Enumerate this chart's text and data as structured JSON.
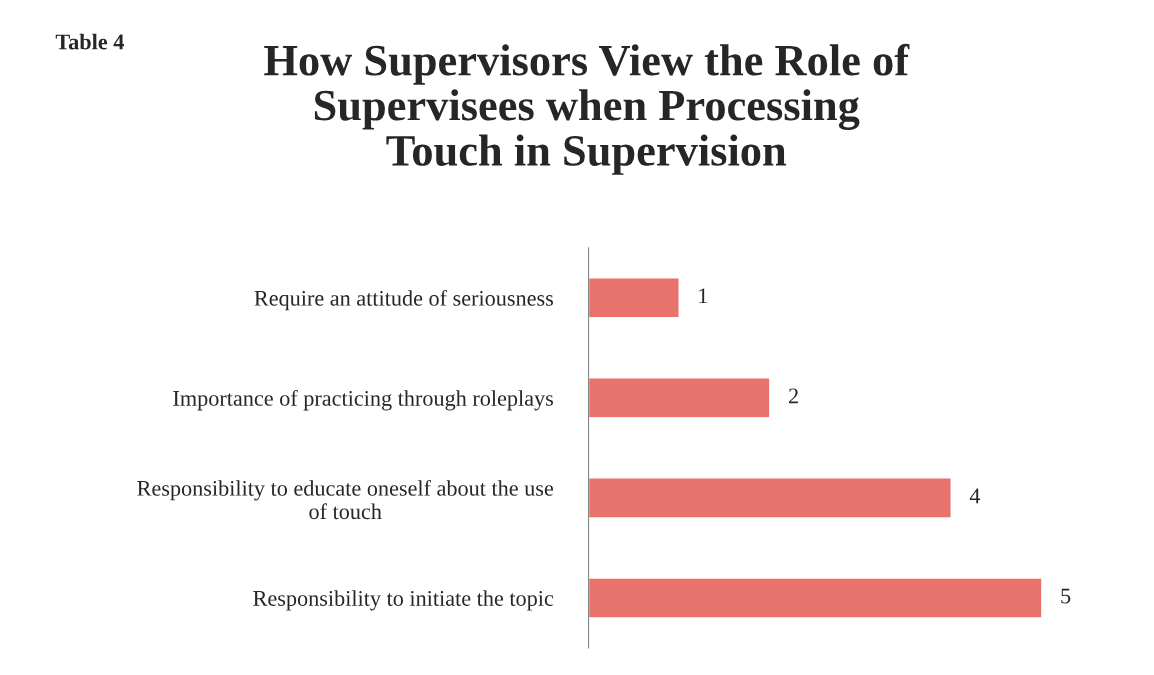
{
  "chart_data": {
    "type": "bar",
    "orientation": "horizontal",
    "title": "How Supervisors View the Role of\nSupervisees when Processing\nTouch in Supervision",
    "annotations": [
      "Table 4"
    ],
    "categories": [
      "Require an attitude of seriousness",
      "Importance of practicing through roleplays",
      "Responsibility to educate oneself about the use\nof touch",
      "Responsibility to initiate the topic"
    ],
    "values": [
      1,
      2,
      4,
      5
    ],
    "color": "#e8736c",
    "data_labels": true,
    "grid": false,
    "legend": false
  }
}
